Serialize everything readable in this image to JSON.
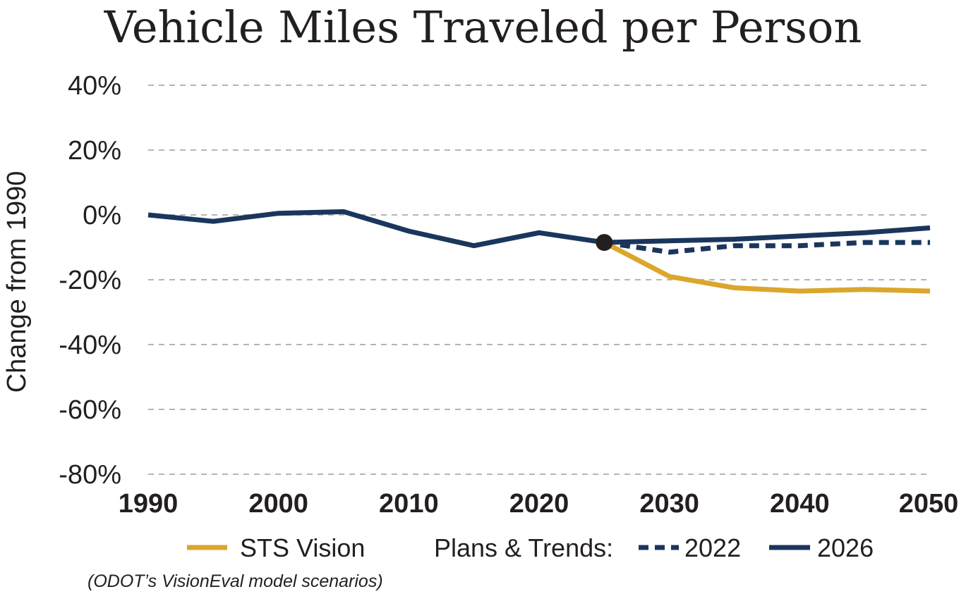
{
  "chart_data": {
    "type": "line",
    "title": "Vehicle Miles Traveled per Person",
    "ylabel": "Change from 1990",
    "xlabel": "",
    "xlim": [
      1990,
      2050
    ],
    "ylim": [
      -80,
      40
    ],
    "x_ticks": [
      "1990",
      "2000",
      "2010",
      "2020",
      "2030",
      "2040",
      "2050"
    ],
    "y_ticks": [
      "40%",
      "20%",
      "0%",
      "-20%",
      "-40%",
      "-60%",
      "-80%"
    ],
    "y_tick_values": [
      40,
      20,
      0,
      -20,
      -40,
      -60,
      -80
    ],
    "grid": "horizontal dashed",
    "series": [
      {
        "name": "2026",
        "style": "solid",
        "color": "#1b365d",
        "x": [
          1990,
          1995,
          2000,
          2005,
          2010,
          2015,
          2020,
          2025,
          2030,
          2035,
          2040,
          2045,
          2050
        ],
        "values": [
          0,
          -2,
          0.5,
          1,
          -5,
          -9.5,
          -5.5,
          -8.5,
          -8,
          -7.5,
          -6.5,
          -5.5,
          -4
        ]
      },
      {
        "name": "2022",
        "style": "dashed",
        "color": "#1b365d",
        "x": [
          2025,
          2030,
          2035,
          2040,
          2045,
          2050
        ],
        "values": [
          -8.5,
          -11.5,
          -9.5,
          -9.5,
          -8.5,
          -8.5
        ]
      },
      {
        "name": "STS Vision",
        "style": "solid",
        "color": "#daa62c",
        "x": [
          2025,
          2030,
          2035,
          2040,
          2045,
          2050
        ],
        "values": [
          -8.5,
          -19,
          -22.5,
          -23.5,
          -23,
          -23.5
        ]
      }
    ],
    "marker": {
      "x": 2025,
      "y": -8.5,
      "color": "#231f20"
    },
    "legend": {
      "placement": "bottom",
      "group_label": "Plans & Trends:",
      "note": "(ODOT’s VisionEval model scenarios)"
    }
  }
}
